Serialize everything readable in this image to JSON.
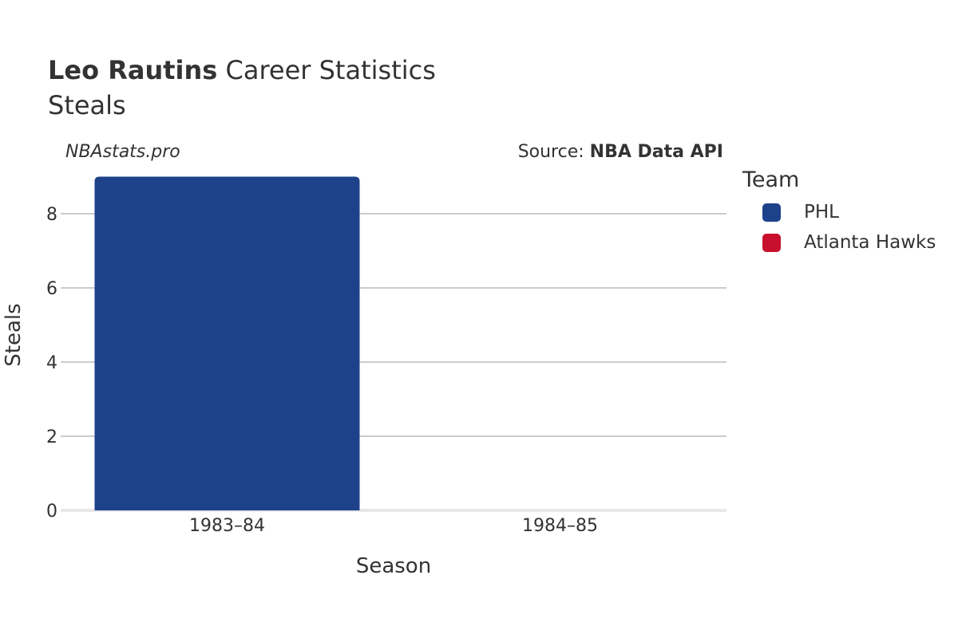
{
  "title": {
    "bold": "Leo Rautins",
    "rest": " Career Statistics"
  },
  "subtitle": "Steals",
  "watermark": "NBAstats.pro",
  "source": {
    "prefix": "Source: ",
    "name": "NBA Data API"
  },
  "legend": {
    "title": "Team",
    "items": [
      {
        "label": "PHL",
        "color": "#1d428a"
      },
      {
        "label": "Atlanta Hawks",
        "color": "#c8102e"
      }
    ]
  },
  "chart_data": {
    "type": "bar",
    "categories": [
      "1983–84",
      "1984–85"
    ],
    "series": [
      {
        "name": "PHL",
        "color": "#1d428a",
        "values": [
          9,
          0
        ]
      },
      {
        "name": "Atlanta Hawks",
        "color": "#c8102e",
        "values": [
          0,
          0
        ]
      }
    ],
    "xlabel": "Season",
    "ylabel": "Steals",
    "ylim": [
      0,
      9
    ],
    "yticks": [
      0,
      2,
      4,
      6,
      8
    ],
    "grid": true,
    "legend_position": "right"
  }
}
